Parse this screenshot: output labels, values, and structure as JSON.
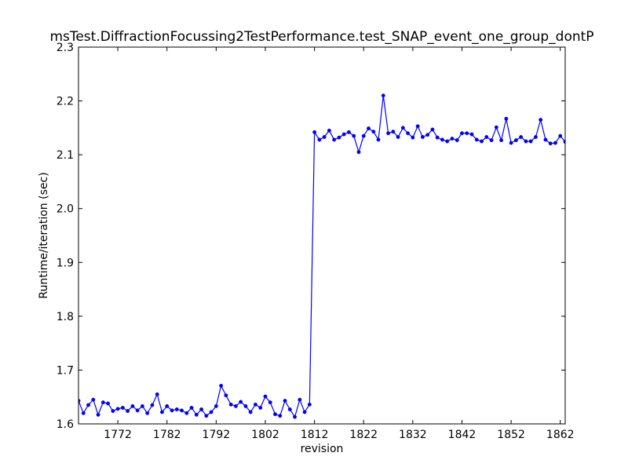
{
  "chart_data": {
    "type": "line",
    "title": "msTest.DiffractionFocussing2TestPerformance.test_SNAP_event_one_group_dontP",
    "xlabel": "revision",
    "ylabel": "Runtime/iteration (sec)",
    "xlim": [
      1764,
      1863
    ],
    "ylim": [
      1.6,
      2.3
    ],
    "xticks": [
      1772,
      1782,
      1792,
      1802,
      1812,
      1822,
      1832,
      1842,
      1852,
      1862
    ],
    "yticks": [
      1.6,
      1.7,
      1.8,
      1.9,
      2.0,
      2.1,
      2.2,
      2.3
    ],
    "grid": false,
    "series": [
      {
        "color": "#0000ff",
        "marker": "circle",
        "x": [
          1764,
          1765,
          1766,
          1767,
          1768,
          1769,
          1770,
          1771,
          1772,
          1773,
          1774,
          1775,
          1776,
          1777,
          1778,
          1779,
          1780,
          1781,
          1782,
          1783,
          1784,
          1785,
          1786,
          1787,
          1788,
          1789,
          1790,
          1791,
          1792,
          1793,
          1794,
          1795,
          1796,
          1797,
          1798,
          1799,
          1800,
          1801,
          1802,
          1803,
          1804,
          1805,
          1806,
          1807,
          1808,
          1809,
          1810,
          1811,
          1812,
          1813,
          1814,
          1815,
          1816,
          1817,
          1818,
          1819,
          1820,
          1821,
          1822,
          1823,
          1824,
          1825,
          1826,
          1827,
          1828,
          1829,
          1830,
          1831,
          1832,
          1833,
          1834,
          1835,
          1836,
          1837,
          1838,
          1839,
          1840,
          1841,
          1842,
          1843,
          1844,
          1845,
          1846,
          1847,
          1848,
          1849,
          1850,
          1851,
          1852,
          1853,
          1854,
          1855,
          1856,
          1857,
          1858,
          1859,
          1860,
          1861,
          1862,
          1863
        ],
        "y": [
          1.643,
          1.62,
          1.635,
          1.645,
          1.617,
          1.64,
          1.638,
          1.624,
          1.628,
          1.63,
          1.624,
          1.633,
          1.625,
          1.633,
          1.62,
          1.635,
          1.655,
          1.622,
          1.633,
          1.625,
          1.627,
          1.625,
          1.62,
          1.63,
          1.617,
          1.627,
          1.615,
          1.622,
          1.633,
          1.671,
          1.653,
          1.636,
          1.633,
          1.641,
          1.633,
          1.622,
          1.636,
          1.63,
          1.651,
          1.64,
          1.618,
          1.615,
          1.643,
          1.627,
          1.613,
          1.645,
          1.622,
          1.636,
          2.142,
          2.128,
          2.133,
          2.145,
          2.128,
          2.132,
          2.138,
          2.142,
          2.135,
          2.105,
          2.135,
          2.149,
          2.143,
          2.128,
          2.21,
          2.14,
          2.143,
          2.133,
          2.15,
          2.14,
          2.132,
          2.153,
          2.133,
          2.137,
          2.147,
          2.132,
          2.128,
          2.125,
          2.13,
          2.127,
          2.14,
          2.14,
          2.138,
          2.128,
          2.125,
          2.133,
          2.127,
          2.151,
          2.127,
          2.167,
          2.122,
          2.127,
          2.133,
          2.125,
          2.125,
          2.133,
          2.165,
          2.128,
          2.121,
          2.122,
          2.135,
          2.124
        ]
      }
    ]
  }
}
